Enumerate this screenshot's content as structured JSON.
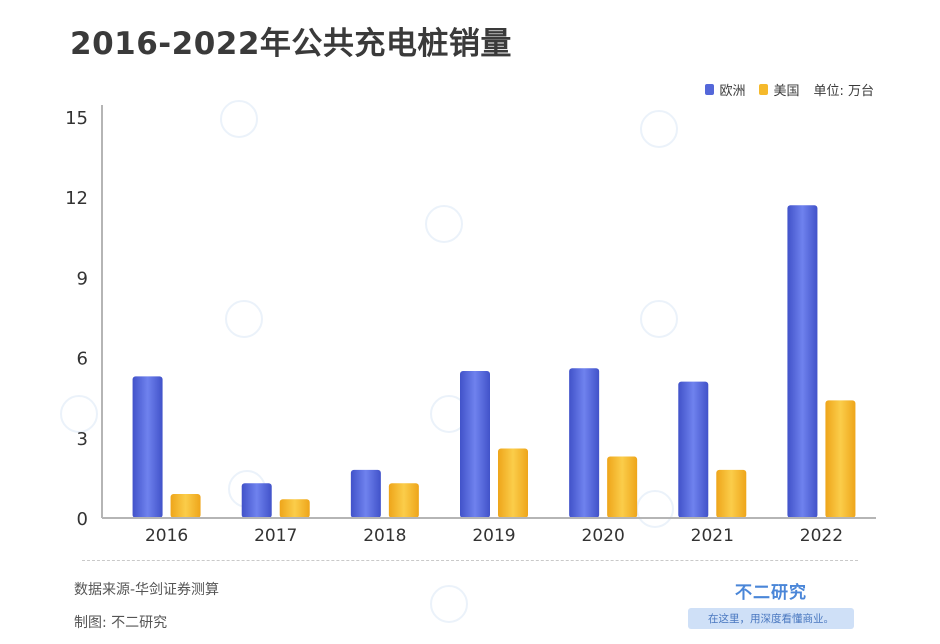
{
  "header": {
    "title": "2016-2022年公共充电桩销量"
  },
  "legend": {
    "items": [
      {
        "label": "欧洲",
        "color": "#5467d9"
      },
      {
        "label": "美国",
        "color": "#f5b92b"
      }
    ],
    "unit": "单位: 万台"
  },
  "chart_data": {
    "type": "bar",
    "title": "2016-2022年公共充电桩销量",
    "unit": "万台",
    "categories": [
      "2016",
      "2017",
      "2018",
      "2019",
      "2020",
      "2021",
      "2022"
    ],
    "series": [
      {
        "name": "欧洲",
        "color": "#5467d9",
        "values": [
          5.3,
          1.3,
          1.8,
          5.5,
          5.6,
          5.1,
          11.7
        ]
      },
      {
        "name": "美国",
        "color": "#f5b92b",
        "values": [
          0.9,
          0.7,
          1.3,
          2.6,
          2.3,
          1.8,
          4.4
        ]
      }
    ],
    "ylim": [
      0,
      15
    ],
    "yticks": [
      "0",
      "3",
      "6",
      "9",
      "12",
      "15"
    ],
    "grid": false,
    "legend_position": "top-right"
  },
  "footer": {
    "source": "数据来源-华剑证券测算",
    "maker": "制图: 不二研究",
    "brand_name": "不二研究",
    "brand_slogan": "在这里，用深度看懂商业。"
  }
}
